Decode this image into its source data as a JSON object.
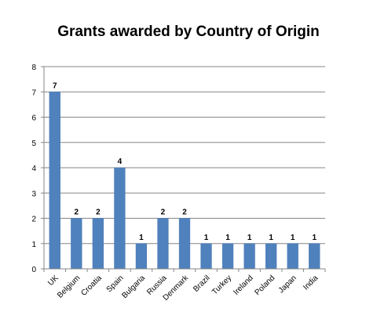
{
  "chart_data": {
    "type": "bar",
    "title": "Grants awarded by Country of Origin",
    "xlabel": "",
    "ylabel": "",
    "categories": [
      "UK",
      "Belgium",
      "Croatia",
      "Spain",
      "Bulgaria",
      "Russia",
      "Denmark",
      "Brazil",
      "Turkey",
      "Ireland",
      "Poland",
      "Japan",
      "India"
    ],
    "values": [
      7,
      2,
      2,
      4,
      1,
      2,
      2,
      1,
      1,
      1,
      1,
      1,
      1
    ],
    "ylim": [
      0,
      8
    ],
    "yticks": [
      "0",
      "1",
      "2",
      "3",
      "4",
      "5",
      "6",
      "7",
      "8"
    ],
    "data_labels": true,
    "grid": "horizontal",
    "legend": "none",
    "bar_color": "#4f81bd"
  }
}
